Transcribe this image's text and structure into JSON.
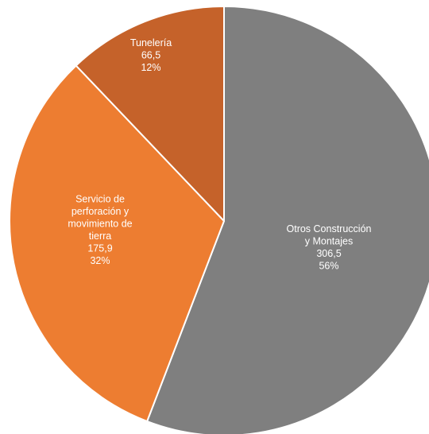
{
  "chart_data": {
    "type": "pie",
    "slices": [
      {
        "label": [
          "Otros Construcción",
          "y Montajes"
        ],
        "value": 306.5,
        "value_label": "306,5",
        "percent_label": "56%",
        "color": "#7f7f7f"
      },
      {
        "label": [
          "Servicio de",
          "perforación y",
          "movimiento de",
          "tierra"
        ],
        "value": 175.9,
        "value_label": "175,9",
        "percent_label": "32%",
        "color": "#ed7d31"
      },
      {
        "label": [
          "Tunelería"
        ],
        "value": 66.5,
        "value_label": "66,5",
        "percent_label": "12%",
        "color": "#c5622a"
      }
    ],
    "start_angle": "12 o'clock",
    "direction": "clockwise",
    "slice_border_color": "#ffffff",
    "label_color": "#ffffff",
    "legend": "none"
  }
}
